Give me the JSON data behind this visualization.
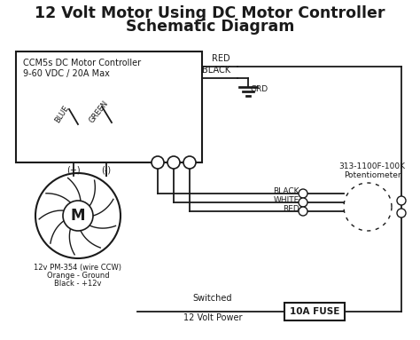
{
  "title_line1": "12 Volt Motor Using DC Motor Controller",
  "title_line2": "Schematic Diagram",
  "bg_color": "#ffffff",
  "line_color": "#1a1a1a",
  "controller_label1": "CCM5s DC Motor Controller",
  "controller_label2": "9-60 VDC / 20A Max",
  "fuse_label": "10A FUSE",
  "pot_label1": "313-1100F-100K",
  "pot_label2": "Potentiometer"
}
